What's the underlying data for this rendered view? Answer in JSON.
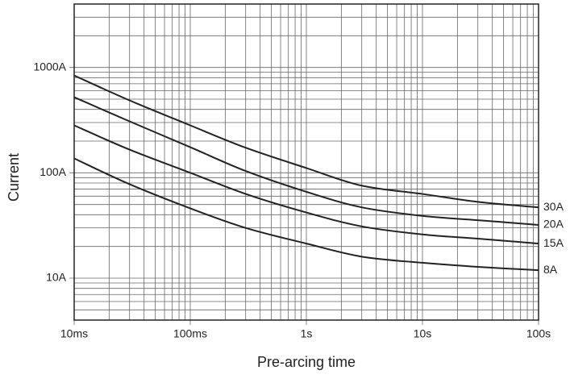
{
  "chart_data": {
    "type": "line",
    "x_label": "Pre-arcing time",
    "y_label": "Current",
    "log_x": true,
    "log_y": true,
    "grid": true,
    "minor_grid": true,
    "color": "#222222",
    "x": [
      0.01,
      0.03,
      0.1,
      0.3,
      1,
      3,
      10,
      30,
      100
    ],
    "xlim": [
      0.01,
      100
    ],
    "xticks": [
      {
        "value": 0.01,
        "label": "10ms"
      },
      {
        "value": 0.1,
        "label": "100ms"
      },
      {
        "value": 1,
        "label": "1s"
      },
      {
        "value": 10,
        "label": "10s"
      },
      {
        "value": 100,
        "label": "100s"
      }
    ],
    "ylim": [
      4,
      4000
    ],
    "yticks": [
      {
        "value": 10,
        "label": "10A"
      },
      {
        "value": 100,
        "label": "100A"
      },
      {
        "value": 1000,
        "label": "1000A"
      }
    ],
    "series": [
      {
        "name": "30A",
        "values": [
          839,
          487,
          282,
          173,
          111,
          75.5,
          63,
          53,
          47
        ]
      },
      {
        "name": "20A",
        "values": [
          522,
          308,
          175,
          104,
          66,
          47,
          39,
          35.5,
          32
        ]
      },
      {
        "name": "15A",
        "values": [
          282,
          166,
          100,
          63,
          42,
          31,
          26,
          23.7,
          21.3
        ]
      },
      {
        "name": "8A",
        "values": [
          137,
          78,
          46,
          30,
          21.3,
          16,
          14,
          12.8,
          11.9
        ]
      }
    ]
  }
}
